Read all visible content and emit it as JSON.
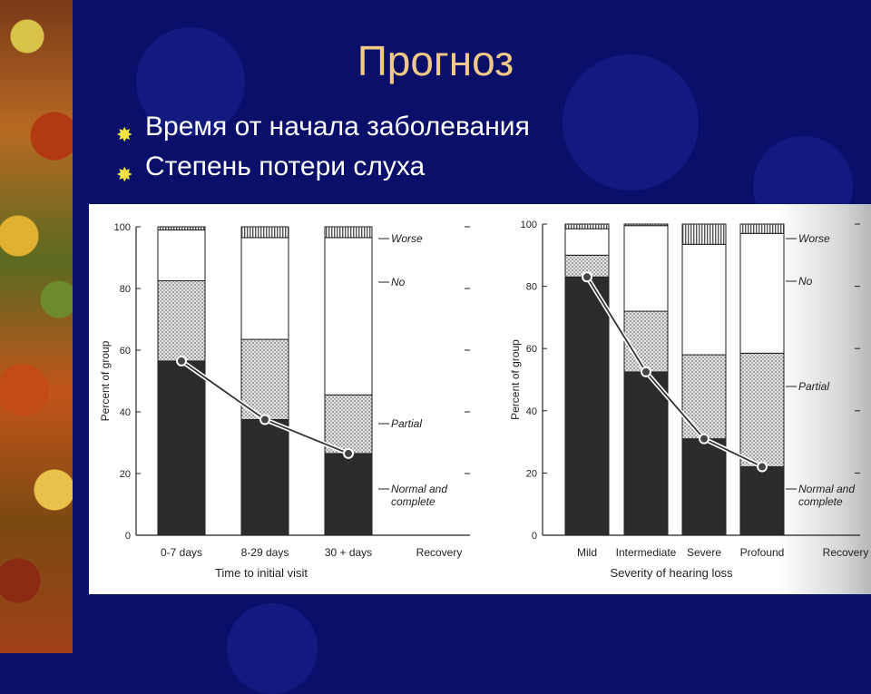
{
  "slide": {
    "title": "Прогноз",
    "bullets": [
      {
        "text": "Время от начала заболевания",
        "icon": "sun-bullet-icon"
      },
      {
        "text": "Степень потери слуха",
        "icon": "sun-bullet-icon"
      }
    ]
  },
  "colors": {
    "background": "#0a0f6a",
    "title": "#f0c987",
    "bullet": "#f5e342",
    "normal": "#2a2a2a",
    "partial": "#c9c9c9",
    "no": "#ffffff",
    "worse": "#9a9a9a"
  },
  "chart_data": [
    {
      "type": "bar",
      "stacked": true,
      "xlabel": "Time to initial visit",
      "ylabel": "Percent of group",
      "ylim": [
        0,
        100
      ],
      "yticks": [
        "0",
        "20",
        "40",
        "60",
        "80",
        "100"
      ],
      "categories": [
        "0-7 days",
        "8-29 days",
        "30 + days"
      ],
      "recovery_label": "Recovery",
      "series": [
        {
          "name": "Normal and complete",
          "values": [
            56.5,
            37.5,
            26.5
          ]
        },
        {
          "name": "Partial",
          "values": [
            26,
            26,
            19
          ]
        },
        {
          "name": "No",
          "values": [
            16.5,
            33,
            51
          ]
        },
        {
          "name": "Worse",
          "values": [
            1,
            3.5,
            3.5
          ]
        }
      ],
      "line": [
        56.5,
        37.5,
        26.5
      ]
    },
    {
      "type": "bar",
      "stacked": true,
      "xlabel": "Severity of hearing loss",
      "ylabel": "Percent of group",
      "ylim": [
        0,
        100
      ],
      "yticks": [
        "0",
        "20",
        "40",
        "60",
        "80",
        "100"
      ],
      "categories": [
        "Mild",
        "Intermediate",
        "Severe",
        "Profound"
      ],
      "recovery_label": "Recovery",
      "series": [
        {
          "name": "Normal and complete",
          "values": [
            83,
            52.5,
            31,
            22
          ]
        },
        {
          "name": "Partial",
          "values": [
            7,
            19.5,
            27,
            36.5
          ]
        },
        {
          "name": "No",
          "values": [
            8.5,
            27.5,
            35.5,
            38.5
          ]
        },
        {
          "name": "Worse",
          "values": [
            1.5,
            0.5,
            6.5,
            3
          ]
        }
      ],
      "line": [
        83,
        52.5,
        31,
        22
      ]
    }
  ]
}
